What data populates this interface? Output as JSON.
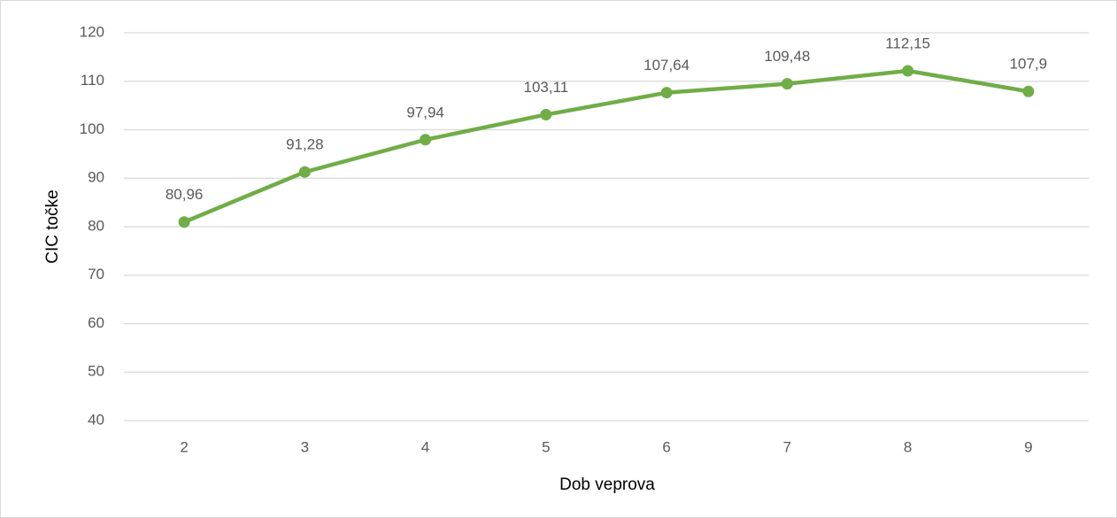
{
  "chart_data": {
    "type": "line",
    "x_label": "Dob veprova",
    "y_label": "CIC točke",
    "categories": [
      "2",
      "3",
      "4",
      "5",
      "6",
      "7",
      "8",
      "9"
    ],
    "series": [
      {
        "name": "CIC točke",
        "color": "#70ad47",
        "values": [
          80.96,
          91.28,
          97.94,
          103.11,
          107.64,
          109.48,
          112.15,
          107.9
        ],
        "value_labels": [
          "80,96",
          "91,28",
          "97,94",
          "103,11",
          "107,64",
          "109,48",
          "112,15",
          "107,9"
        ]
      }
    ],
    "ylim": [
      40,
      120
    ],
    "yticks": [
      40,
      50,
      60,
      70,
      80,
      90,
      100,
      110,
      120
    ],
    "grid": true
  }
}
